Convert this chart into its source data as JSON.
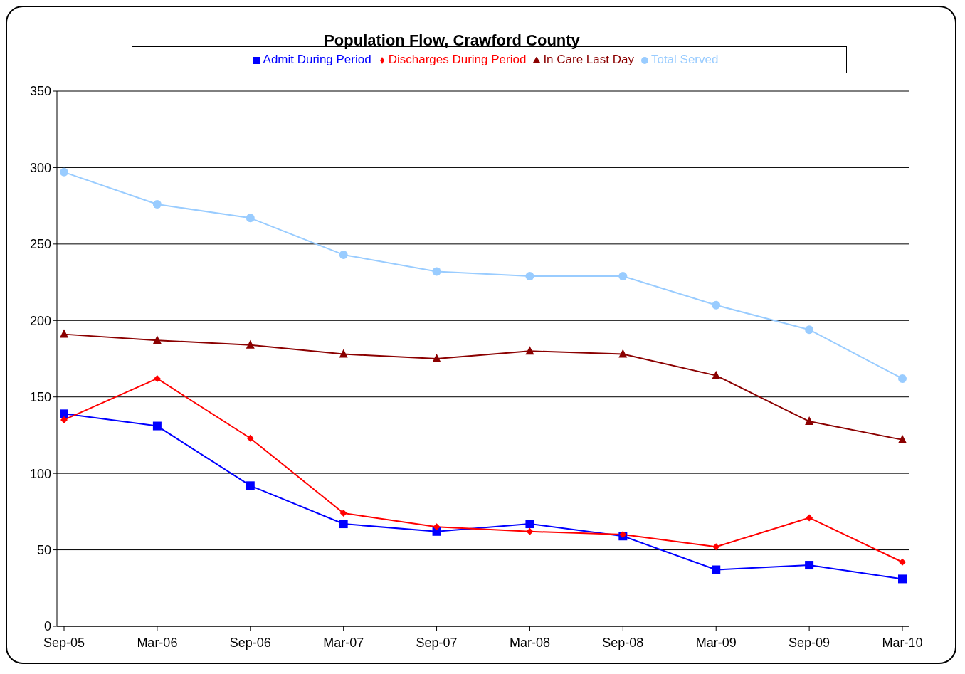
{
  "chart_data": {
    "type": "line",
    "title": "Population Flow, Crawford County",
    "categories": [
      "Sep-05",
      "Mar-06",
      "Sep-06",
      "Mar-07",
      "Sep-07",
      "Mar-08",
      "Sep-08",
      "Mar-09",
      "Sep-09",
      "Mar-10"
    ],
    "series": [
      {
        "name": "Admit During Period",
        "color": "#0000ff",
        "marker": "square",
        "values": [
          139,
          131,
          92,
          67,
          62,
          67,
          59,
          37,
          40,
          31
        ]
      },
      {
        "name": "Discharges During Period",
        "color": "#ff0000",
        "marker": "diamond",
        "values": [
          135,
          162,
          123,
          74,
          65,
          62,
          60,
          52,
          71,
          42
        ]
      },
      {
        "name": "In Care Last Day",
        "color": "#8b0000",
        "marker": "triangle",
        "values": [
          191,
          187,
          184,
          178,
          175,
          180,
          178,
          164,
          134,
          122
        ]
      },
      {
        "name": "Total Served",
        "color": "#99ccff",
        "marker": "circle",
        "values": [
          297,
          276,
          267,
          243,
          232,
          229,
          229,
          210,
          194,
          162
        ]
      }
    ],
    "ylim": [
      0,
      350
    ],
    "yticks": [
      0,
      50,
      100,
      150,
      200,
      250,
      300,
      350
    ],
    "grid": "y",
    "legend": "top",
    "line_style": "solid"
  }
}
